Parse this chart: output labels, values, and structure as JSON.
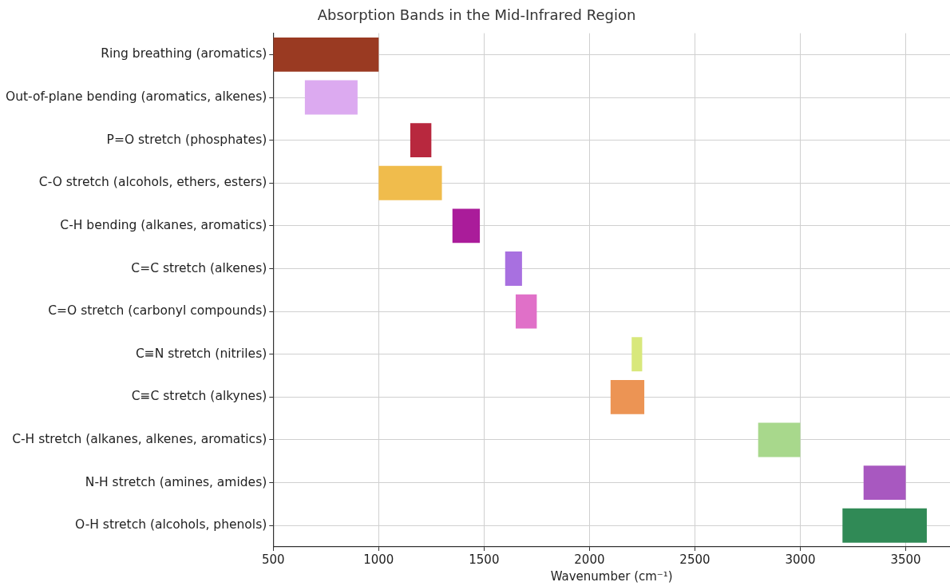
{
  "chart_data": {
    "type": "bar",
    "orientation": "horizontal",
    "title": "Absorption Bands in the Mid-Infrared Region",
    "xlabel": "Wavenumber (cm⁻¹)",
    "categories": [
      "Ring breathing (aromatics)",
      "Out-of-plane bending (aromatics, alkenes)",
      "P=O stretch (phosphates)",
      "C-O stretch (alcohols, ethers, esters)",
      "C-H bending (alkanes, aromatics)",
      "C=C stretch (alkenes)",
      "C=O stretch (carbonyl compounds)",
      "C≡N stretch (nitriles)",
      "C≡C stretch (alkynes)",
      "C-H stretch (alkanes, alkenes, aromatics)",
      "N-H stretch (amines, amides)",
      "O-H stretch (alcohols, phenols)"
    ],
    "base": [
      500,
      650,
      1150,
      1000,
      1350,
      1600,
      1650,
      2200,
      2100,
      2800,
      3300,
      3200
    ],
    "values": [
      500,
      250,
      100,
      300,
      130,
      80,
      100,
      50,
      160,
      200,
      200,
      400
    ],
    "colors": [
      "#9a3a22",
      "#dcaaf0",
      "#b8283e",
      "#f0bc4c",
      "#aa1c9a",
      "#a870e0",
      "#e070c8",
      "#d8e87c",
      "#ec9454",
      "#a8d88c",
      "#a858c0",
      "#308a56"
    ],
    "xlim": [
      500,
      3710
    ],
    "xticks": [
      500,
      1000,
      1500,
      2000,
      2500,
      3000,
      3500
    ],
    "grid": true
  }
}
